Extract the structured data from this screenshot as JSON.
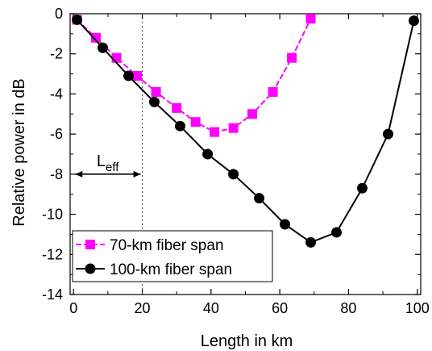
{
  "chart_data": {
    "type": "line",
    "title": "",
    "xlabel": "Length in km",
    "ylabel": "Relative power in dB",
    "xlim": [
      -1,
      101
    ],
    "ylim": [
      -14,
      0
    ],
    "x_ticks": [
      0,
      20,
      40,
      60,
      80,
      100
    ],
    "y_ticks": [
      0,
      -2,
      -4,
      -6,
      -8,
      -10,
      -12,
      -14
    ],
    "grid": false,
    "legend_position": "bottom-left",
    "series": [
      {
        "name": "70-km fiber span",
        "color": "#ff00ff",
        "marker": "square",
        "line_style": "dashed",
        "x": [
          1,
          6.5,
          12.5,
          18.5,
          24,
          30,
          35.5,
          41,
          46.5,
          52,
          58,
          63.5,
          69
        ],
        "y": [
          -0.3,
          -1.2,
          -2.2,
          -3.1,
          -3.9,
          -4.7,
          -5.4,
          -5.9,
          -5.7,
          -5.0,
          -3.9,
          -2.2,
          -0.25
        ]
      },
      {
        "name": "100-km fiber span",
        "color": "#000000",
        "marker": "circle",
        "line_style": "solid",
        "x": [
          1,
          8.5,
          16,
          23.5,
          31,
          39,
          46.5,
          54,
          61.5,
          69,
          76.5,
          84,
          91.5,
          99
        ],
        "y": [
          -0.3,
          -1.7,
          -3.1,
          -4.4,
          -5.6,
          -7.0,
          -8.0,
          -9.2,
          -10.5,
          -11.4,
          -10.9,
          -8.7,
          -6.0,
          -0.35
        ]
      }
    ],
    "annotations": {
      "leff_main": "L",
      "leff_sub": "eff",
      "leff_x_range": [
        0,
        20
      ],
      "leff_y": -8,
      "vline_x": 20
    }
  }
}
